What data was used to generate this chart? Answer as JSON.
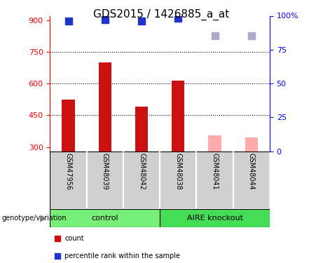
{
  "title": "GDS2015 / 1426885_a_at",
  "samples": [
    "GSM47956",
    "GSM48039",
    "GSM48042",
    "GSM48038",
    "GSM48041",
    "GSM48044"
  ],
  "bar_values": [
    525,
    700,
    490,
    615,
    355,
    345
  ],
  "bar_absent": [
    false,
    false,
    false,
    false,
    true,
    true
  ],
  "bar_color_present": "#cc1111",
  "bar_color_absent": "#ffaaaa",
  "rank_values": [
    96,
    97,
    96,
    98,
    85,
    85
  ],
  "rank_absent": [
    false,
    false,
    false,
    false,
    true,
    true
  ],
  "rank_color_present": "#2233cc",
  "rank_color_absent": "#aaaacc",
  "ylim_left": [
    280,
    920
  ],
  "ylim_right": [
    0,
    100
  ],
  "yticks_left": [
    300,
    450,
    600,
    750,
    900
  ],
  "yticks_right": [
    0,
    25,
    50,
    75,
    100
  ],
  "hlines": [
    450,
    600,
    750
  ],
  "control_color": "#77ee77",
  "knockout_color": "#44dd55",
  "label_bg": "#d0d0d0",
  "bar_width": 0.35,
  "marker_size": 50,
  "title_fontsize": 11,
  "tick_fontsize": 8,
  "label_fontsize": 7,
  "group_fontsize": 8,
  "legend_fontsize": 7
}
